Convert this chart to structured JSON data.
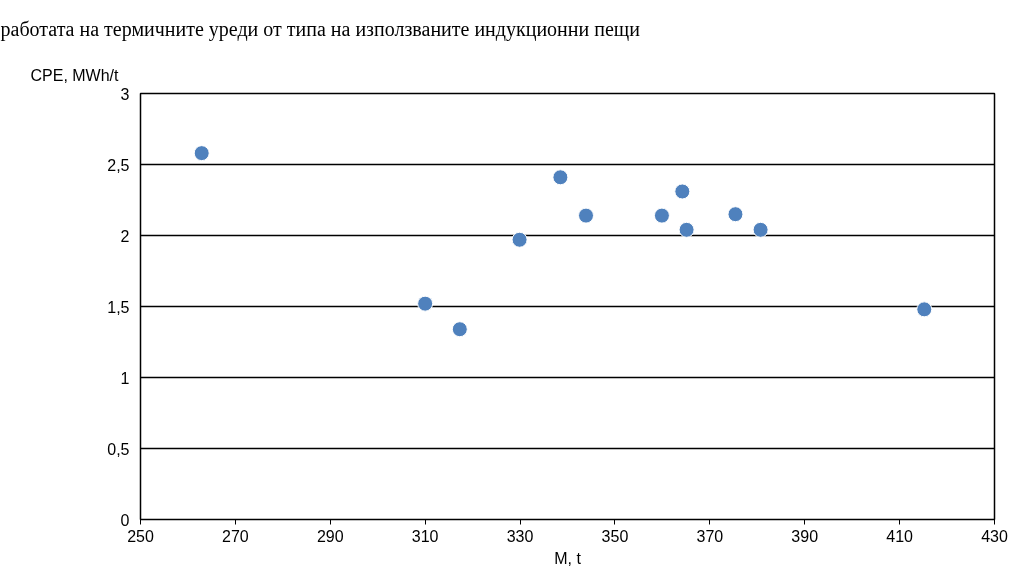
{
  "chart_data": {
    "type": "scatter",
    "xlabel": "M, t",
    "ylabel": "CPE, MWh/t",
    "annotations": [
      "работата на термичните уреди от типа на използваните индукционни пещи"
    ],
    "x": [
      262.9,
      310,
      317.3,
      329.9,
      338.5,
      343.9,
      359.9,
      364.2,
      365.1,
      375.4,
      380.7,
      415.2
    ],
    "series": [
      {
        "color": "#4f81bd",
        "values": [
          2.58,
          1.52,
          1.34,
          1.97,
          2.41,
          2.14,
          2.14,
          2.31,
          2.04,
          2.15,
          2.04,
          1.48
        ]
      }
    ],
    "xlim": [
      250,
      430
    ],
    "xticks": [
      250,
      270,
      290,
      310,
      330,
      350,
      370,
      390,
      410,
      430
    ],
    "ylim": [
      0,
      3
    ],
    "yticks": [
      0,
      {
        "value": 0.5,
        "label": "0,5"
      },
      1,
      {
        "value": 1.5,
        "label": "1,5"
      },
      2,
      {
        "value": 2.5,
        "label": "2,5"
      },
      3
    ],
    "grid": "y",
    "marker": "circle"
  }
}
